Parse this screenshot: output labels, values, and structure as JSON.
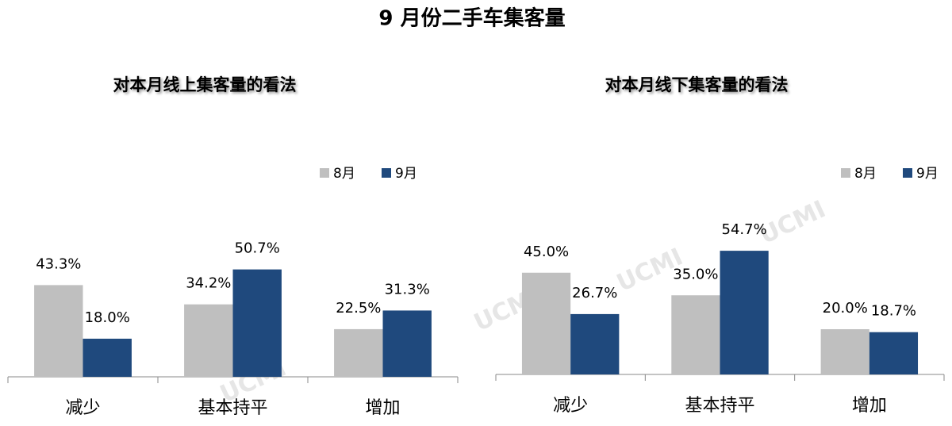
{
  "title": "9 月份二手车集客量",
  "watermark": "UCMI",
  "chart_data": [
    {
      "type": "bar",
      "title": "对本月线上集客量的看法",
      "categories": [
        "减少",
        "基本持平",
        "增加"
      ],
      "series": [
        {
          "name": "8月",
          "color": "#bfbfbf",
          "values": [
            43.3,
            34.2,
            22.5
          ],
          "value_labels": [
            "43.3%",
            "34.2%",
            "22.5%"
          ]
        },
        {
          "name": "9月",
          "color": "#1f497d",
          "values": [
            18.0,
            50.7,
            31.3
          ],
          "value_labels": [
            "18.0%",
            "50.7%",
            "31.3%"
          ]
        }
      ]
    },
    {
      "type": "bar",
      "title": "对本月线下集客量的看法",
      "categories": [
        "减少",
        "基本持平",
        "增加"
      ],
      "series": [
        {
          "name": "8月",
          "color": "#bfbfbf",
          "values": [
            45.0,
            35.0,
            20.0
          ],
          "value_labels": [
            "45.0%",
            "35.0%",
            "20.0%"
          ]
        },
        {
          "name": "9月",
          "color": "#1f497d",
          "values": [
            26.7,
            54.7,
            18.7
          ],
          "value_labels": [
            "26.7%",
            "54.7%",
            "18.7%"
          ]
        }
      ]
    }
  ]
}
